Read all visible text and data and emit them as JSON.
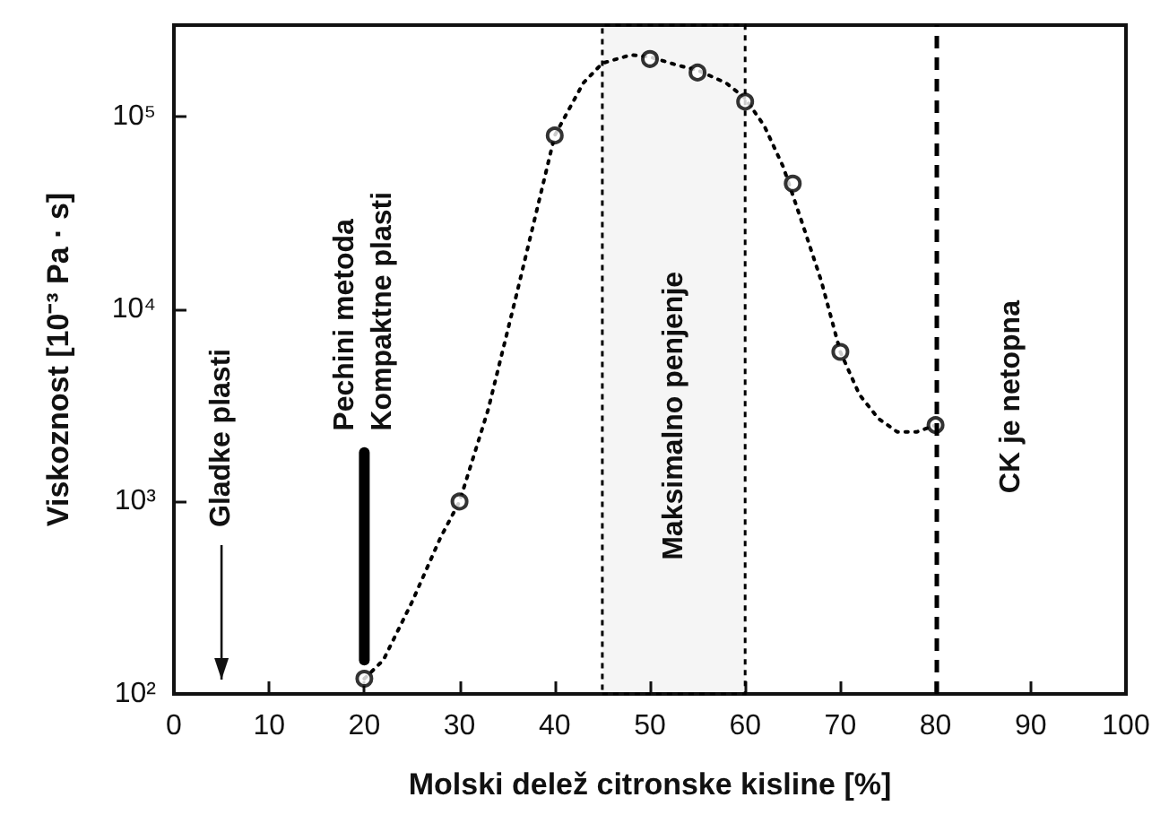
{
  "chart_data": {
    "type": "scatter",
    "xlabel": "Molski delež citronske kisline [%]",
    "ylabel": "Viskoznost [10⁻³ Pa · s]",
    "xlim": [
      0,
      100
    ],
    "xticks": [
      0,
      10,
      20,
      30,
      40,
      50,
      60,
      70,
      80,
      90,
      100
    ],
    "ylim": [
      100,
      300000
    ],
    "log": "y",
    "yticks": [
      {
        "value": 100,
        "label": "10²"
      },
      {
        "value": 1000,
        "label": "10³"
      },
      {
        "value": 10000,
        "label": "10⁴"
      },
      {
        "value": 100000,
        "label": "10⁵"
      }
    ],
    "series": [
      {
        "type": "line",
        "line_style": "dotted",
        "marker": "none",
        "color": "#000000",
        "x": [
          20,
          22,
          25,
          28,
          30,
          33,
          36,
          40,
          43,
          45,
          48,
          50,
          53,
          55,
          58,
          60,
          62,
          64,
          66,
          68,
          70,
          72,
          74,
          76,
          78,
          80
        ],
        "values": [
          120,
          150,
          300,
          650,
          1000,
          3000,
          12000,
          80000,
          150000,
          190000,
          210000,
          205000,
          185000,
          175000,
          150000,
          125000,
          90000,
          55000,
          28000,
          14000,
          6000,
          3600,
          2700,
          2300,
          2300,
          2500
        ]
      },
      {
        "marker": "circle",
        "color": "#000000",
        "x": [
          20,
          30,
          40,
          50,
          55,
          60,
          65,
          70,
          80
        ],
        "values": [
          120,
          1000,
          80000,
          200000,
          170000,
          120000,
          45000,
          6000,
          2500
        ]
      },
      {
        "type": "line",
        "line_style": "solid",
        "marker": "none",
        "color": "#000000",
        "x": [
          20,
          20
        ],
        "values": [
          150,
          1800
        ]
      }
    ],
    "bands": [
      {
        "axis": "x",
        "from": 45,
        "to": 60,
        "label": "Maksimalno penjenje",
        "color": "#000000"
      }
    ],
    "ref_lines": [
      {
        "axis": "x",
        "value": 80,
        "label": "CK je netopna",
        "line_style": "dashed",
        "color": "#000000"
      }
    ],
    "annotations": [
      "Gladke plasti",
      "Pechini metoda",
      "Kompaktne plasti"
    ]
  }
}
